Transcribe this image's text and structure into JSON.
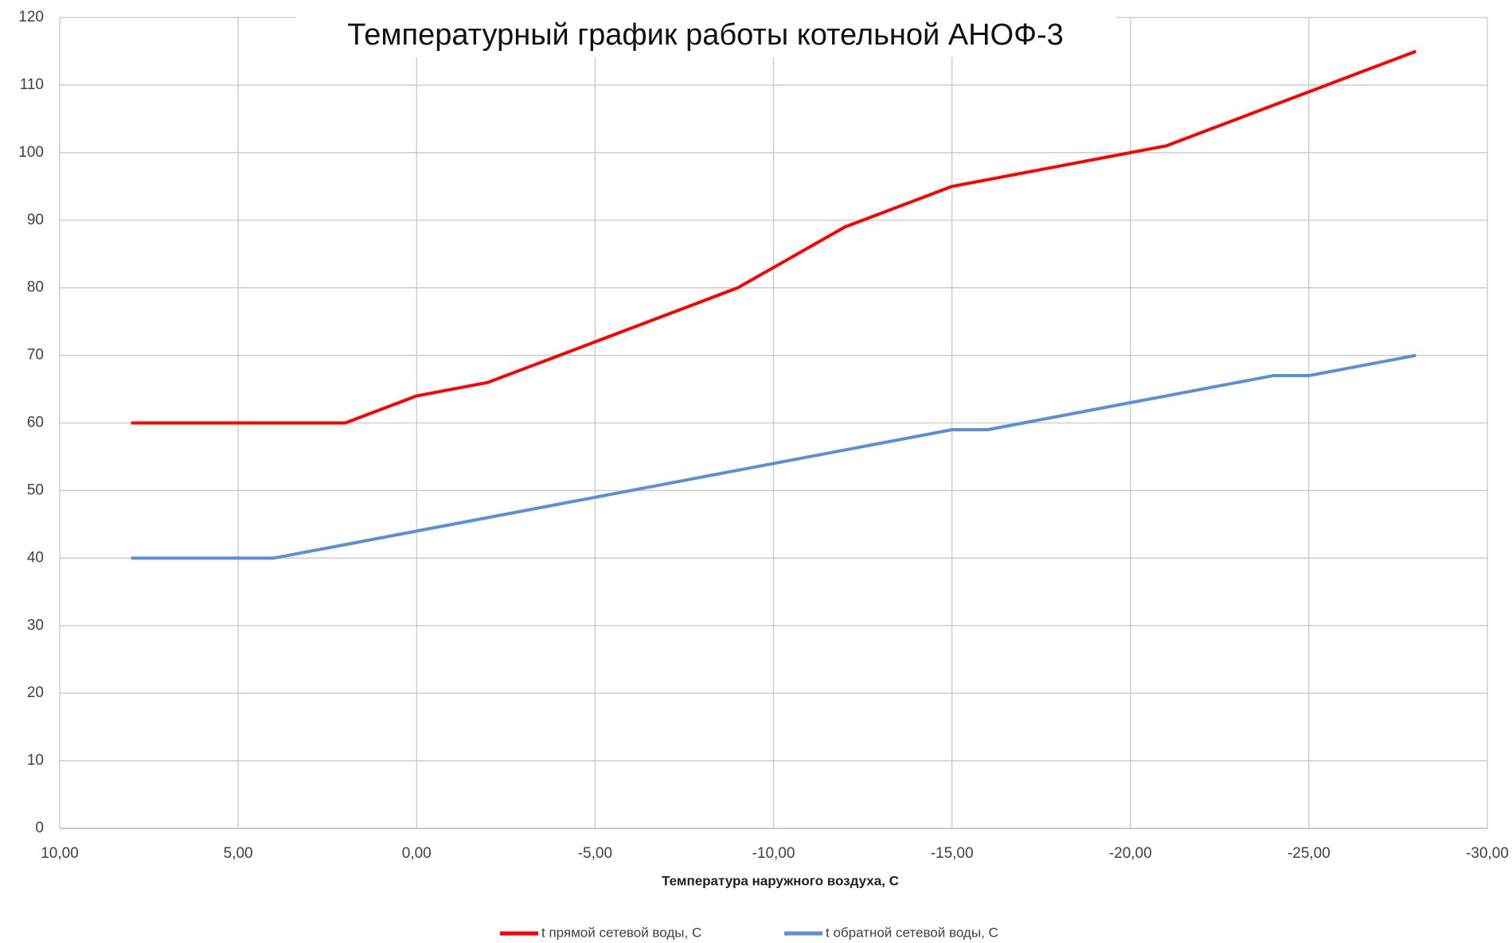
{
  "chart_data": {
    "type": "line",
    "title": "Температурный график работы котельной АНОФ-3",
    "x_label": "Температура наружного воздуха, С",
    "x": [
      8,
      7,
      6,
      5,
      4,
      3,
      2,
      1,
      0,
      -1,
      -2,
      -3,
      -4,
      -5,
      -6,
      -7,
      -8,
      -9,
      -10,
      -11,
      -12,
      -13,
      -14,
      -15,
      -16,
      -17,
      -18,
      -19,
      -20,
      -21,
      -22,
      -23,
      -24,
      -25,
      -26,
      -27,
      -28
    ],
    "series": [
      {
        "name": "t прямой сетевой воды, С",
        "color": "#ff0000",
        "values": [
          60,
          60,
          60,
          60,
          60,
          60,
          60,
          62,
          64,
          65,
          66,
          68,
          70,
          72,
          74,
          76,
          78,
          80,
          83,
          86,
          89,
          91,
          93,
          95,
          96,
          97,
          98,
          99,
          100,
          101,
          103,
          105,
          107,
          109,
          111,
          113,
          115
        ]
      },
      {
        "name": "t обратной сетевой воды, С",
        "color": "#5b8fd6",
        "values": [
          40,
          40,
          40,
          40,
          40,
          41,
          42,
          43,
          44,
          45,
          46,
          47,
          48,
          49,
          50,
          51,
          52,
          53,
          54,
          55,
          56,
          57,
          58,
          59,
          59,
          60,
          61,
          62,
          63,
          64,
          65,
          66,
          67,
          67,
          68,
          69,
          70
        ]
      }
    ],
    "xlim": [
      10,
      -30
    ],
    "xticks": [
      {
        "value": 10,
        "label": "10,00"
      },
      {
        "value": 5,
        "label": "5,00"
      },
      {
        "value": 0,
        "label": "0,00"
      },
      {
        "value": -5,
        "label": "-5,00"
      },
      {
        "value": -10,
        "label": "-10,00"
      },
      {
        "value": -15,
        "label": "-15,00"
      },
      {
        "value": -20,
        "label": "-20,00"
      },
      {
        "value": -25,
        "label": "-25,00"
      },
      {
        "value": -30,
        "label": "-30,00"
      }
    ],
    "ylim": [
      0,
      120
    ],
    "yticks": [
      0,
      10,
      20,
      30,
      40,
      50,
      60,
      70,
      80,
      90,
      100,
      110,
      120
    ],
    "grid": true,
    "legend": "bottom"
  }
}
